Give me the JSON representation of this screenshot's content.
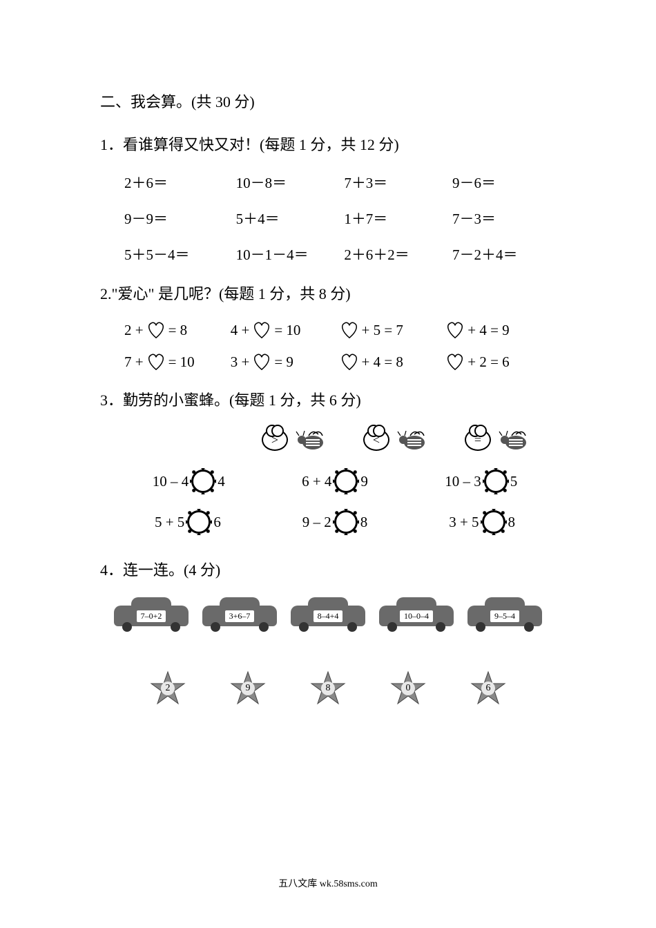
{
  "section2_title": "二、我会算。(共 30 分)",
  "q1": {
    "title": "1．看谁算得又快又对！(每题 1 分，共 12 分)",
    "rows": [
      [
        "2＋6＝",
        "10－8＝",
        "7＋3＝",
        "9－6＝"
      ],
      [
        "9－9＝",
        "5＋4＝",
        "1＋7＝",
        "7－3＝"
      ],
      [
        "5＋5－4＝",
        "10－1－4＝",
        "2＋6＋2＝",
        "7－2＋4＝"
      ]
    ]
  },
  "q2": {
    "title": "2.\"爱心\" 是几呢？(每题 1 分，共 8 分)",
    "rows": [
      [
        {
          "pre": "2 +",
          "post": "= 8",
          "heartFirst": false
        },
        {
          "pre": "4 +",
          "post": "= 10",
          "heartFirst": false
        },
        {
          "pre": "",
          "post": "+ 5 = 7",
          "heartFirst": true
        },
        {
          "pre": "",
          "post": "+ 4 = 9",
          "heartFirst": true
        }
      ],
      [
        {
          "pre": "7 +",
          "post": "= 10",
          "heartFirst": false
        },
        {
          "pre": "3 +",
          "post": "= 9",
          "heartFirst": false
        },
        {
          "pre": "",
          "post": "+ 4 = 8",
          "heartFirst": true
        },
        {
          "pre": "",
          "post": "+ 2 = 6",
          "heartFirst": true
        }
      ]
    ]
  },
  "q3": {
    "title": "3．勤劳的小蜜蜂。(每题 1 分，共 6 分)",
    "symbols": [
      ">",
      "<",
      "="
    ],
    "rows": [
      [
        {
          "l": "10 – 4",
          "r": "4"
        },
        {
          "l": "6 + 4",
          "r": "9"
        },
        {
          "l": "10 – 3",
          "r": "5"
        }
      ],
      [
        {
          "l": "5 + 5",
          "r": "6"
        },
        {
          "l": "9 – 2",
          "r": "8"
        },
        {
          "l": "3 + 5",
          "r": "8"
        }
      ]
    ]
  },
  "q4": {
    "title": "4．连一连。(4 分)",
    "cars": [
      "7–0+2",
      "3+6–7",
      "8–4+4",
      "10–0–4",
      "9–5–4"
    ],
    "stars": [
      "2",
      "9",
      "8",
      "0",
      "6"
    ]
  },
  "footer": "五八文库 wk.58sms.com",
  "colors": {
    "text": "#000000",
    "bg": "#ffffff",
    "car": "#6a6a6a",
    "starFill": "#888888"
  }
}
